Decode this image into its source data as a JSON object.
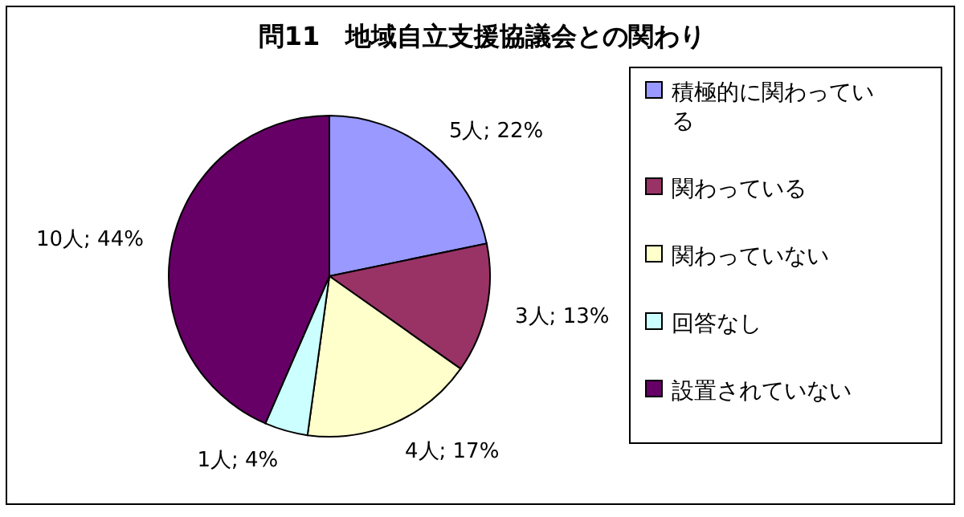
{
  "chart_data": {
    "type": "pie",
    "title": "問11　地域自立支援協議会との関わり",
    "categories": [
      "積極的に関わっている",
      "関わっている",
      "関わっていない",
      "回答なし",
      "設置されていない"
    ],
    "values": [
      5,
      3,
      4,
      1,
      10
    ],
    "colors": [
      "#9999ff",
      "#993366",
      "#ffffcc",
      "#ccffff",
      "#660066"
    ],
    "value_labels": [
      "5人; 22%",
      "3人; 13%",
      "4人; 17%",
      "1人; 4%",
      "10人; 44%"
    ],
    "legend": "right"
  }
}
